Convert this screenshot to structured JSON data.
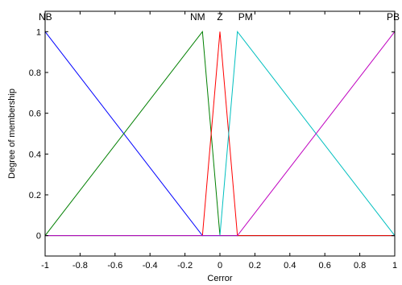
{
  "chart_data": {
    "type": "line",
    "xlabel": "Cerror",
    "ylabel": "Degree of membership",
    "xlim": [
      -1,
      1
    ],
    "ylim": [
      -0.1,
      1.1
    ],
    "xticks": [
      -1,
      -0.8,
      -0.6,
      -0.4,
      -0.2,
      0,
      0.2,
      0.4,
      0.6,
      0.8,
      1
    ],
    "xtick_labels": [
      "-1",
      "-0.8",
      "-0.6",
      "-0.4",
      "-0.2",
      "0",
      "0.2",
      "0.4",
      "0.6",
      "0.8",
      "1"
    ],
    "yticks": [
      0,
      0.2,
      0.4,
      0.6,
      0.8,
      1
    ],
    "ytick_labels": [
      "0",
      "0.2",
      "0.4",
      "0.6",
      "0.8",
      "1"
    ],
    "grid": false,
    "series": [
      {
        "name": "NB",
        "color": "#0000ff",
        "x": [
          -1,
          -0.1,
          1
        ],
        "y": [
          1,
          0,
          0
        ]
      },
      {
        "name": "NM",
        "color": "#007f00",
        "x": [
          -1,
          -0.1,
          0,
          1
        ],
        "y": [
          0,
          1,
          0,
          0
        ]
      },
      {
        "name": "Z",
        "color": "#ff0000",
        "x": [
          -1,
          -0.1,
          0,
          0.1,
          1
        ],
        "y": [
          0,
          0,
          1,
          0,
          0
        ]
      },
      {
        "name": "PM",
        "color": "#00bfbf",
        "x": [
          -1,
          0,
          0.1,
          1
        ],
        "y": [
          0,
          0,
          1,
          0
        ]
      },
      {
        "name": "PB",
        "color": "#bf00bf",
        "x": [
          -1,
          0.1,
          1
        ],
        "y": [
          0,
          0,
          1
        ]
      }
    ],
    "labels": [
      {
        "text": "NB",
        "x": -1
      },
      {
        "text": "NM",
        "x": -0.1
      },
      {
        "text": "Z",
        "x": 0
      },
      {
        "text": "PM",
        "x": 0.1
      },
      {
        "text": "PB",
        "x": 1
      }
    ]
  }
}
